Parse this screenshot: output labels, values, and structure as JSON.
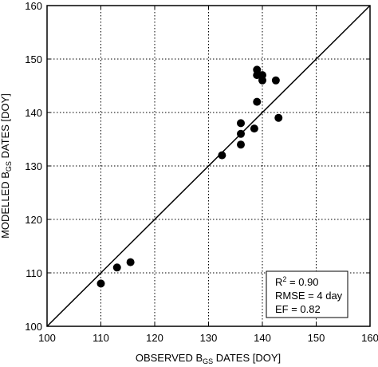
{
  "chart_data": {
    "type": "scatter",
    "xlabel": {
      "before": "OBSERVED B",
      "sub": "GS",
      "after": " DATES [DOY]"
    },
    "ylabel": {
      "before": "MODELLED B",
      "sub": "GS",
      "after": " DATES [DOY]"
    },
    "xlim": [
      100,
      160
    ],
    "ylim": [
      100,
      160
    ],
    "xticks": [
      100,
      110,
      120,
      130,
      140,
      150,
      160
    ],
    "yticks": [
      100,
      110,
      120,
      130,
      140,
      150,
      160
    ],
    "grid": true,
    "grid_style": "dotted",
    "reference_line": "1:1",
    "points": [
      {
        "x": 110,
        "y": 108
      },
      {
        "x": 113,
        "y": 111
      },
      {
        "x": 115.5,
        "y": 112
      },
      {
        "x": 132.5,
        "y": 132
      },
      {
        "x": 136,
        "y": 134
      },
      {
        "x": 136,
        "y": 136
      },
      {
        "x": 136,
        "y": 138
      },
      {
        "x": 138.5,
        "y": 137
      },
      {
        "x": 139,
        "y": 142
      },
      {
        "x": 139,
        "y": 147
      },
      {
        "x": 139,
        "y": 148
      },
      {
        "x": 140,
        "y": 146
      },
      {
        "x": 140,
        "y": 147
      },
      {
        "x": 142.5,
        "y": 146
      },
      {
        "x": 143,
        "y": 139
      }
    ],
    "stats": {
      "r2_prefix": "R",
      "r2_sup": "2",
      "r2_value": " = 0.90",
      "rmse": "RMSE = 4 day",
      "ef": "EF = 0.82"
    },
    "colors": {
      "points": "#000000",
      "axes": "#000000",
      "grid": "#000000",
      "background": "#ffffff"
    }
  }
}
